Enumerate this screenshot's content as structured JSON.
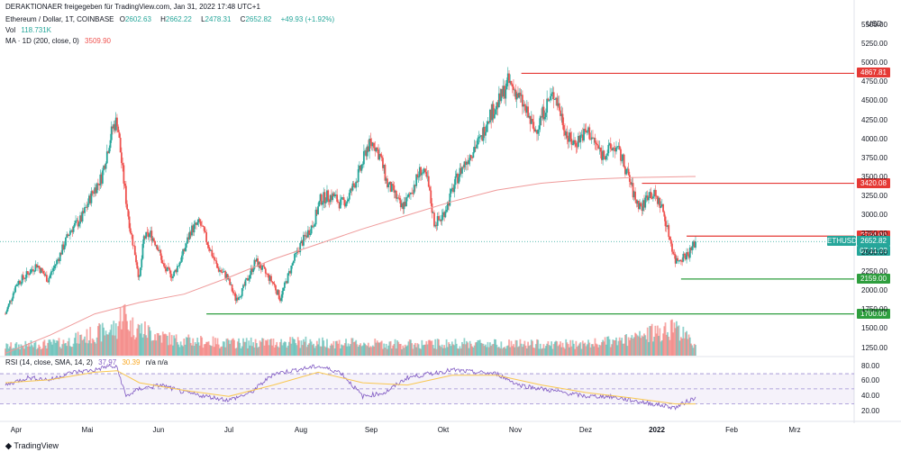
{
  "header": {
    "publisher": "DERAKTIONAER freigegeben für TradingView.com, Jan 31, 2022 17:48 UTC+1",
    "symbol": "Ethereum / Dollar, 1T, COINBASE",
    "ohlc_o_label": "O",
    "ohlc_o": "2602.63",
    "ohlc_h_label": "H",
    "ohlc_h": "2662.22",
    "ohlc_l_label": "L",
    "ohlc_l": "2478.31",
    "ohlc_c_label": "C",
    "ohlc_c": "2652.82",
    "change": "+49.93 (+1.92%)",
    "vol_label": "Vol",
    "vol_value": "118.731K",
    "ma_label": "MA · 1D (200, close, 0)",
    "ma_value": "3509.90",
    "rsi_label": "RSI (14, close, SMA, 14, 2)",
    "rsi_value": "37.97",
    "rsi_sma": "30.39",
    "rsi_na": "n/a n/a"
  },
  "currency": "USD",
  "branding": "TradingView",
  "price_badges": {
    "r1": "4867.81",
    "r2": "3420.08",
    "r3": "2724.00",
    "ticker": "ETHUSD",
    "last": "2652.82",
    "countdown": "07:11:33",
    "s1": "2159.00",
    "s2": "1700.00"
  },
  "colors": {
    "up": "#26a69a",
    "down": "#ef5350",
    "ma": "#ef9a9a",
    "rsi": "#7e57c2",
    "rsi_sma": "#f9c74f",
    "support": "#2e9e3e",
    "resistance": "#e53935"
  },
  "chart_data": {
    "type": "candlestick",
    "x_axis": [
      "Apr",
      "Mai",
      "Jun",
      "Jul",
      "Aug",
      "Sep",
      "Okt",
      "Nov",
      "Dez",
      "2022",
      "Feb",
      "Mrz"
    ],
    "y_ticks": [
      1250,
      1500,
      1750,
      2000,
      2250,
      2500,
      2750,
      3000,
      3250,
      3500,
      3750,
      4000,
      4250,
      4500,
      4750,
      5000,
      5250,
      5500
    ],
    "ylim": [
      1150,
      5620
    ],
    "price_path": [
      [
        0,
        1700
      ],
      [
        10,
        2100
      ],
      [
        18,
        2200
      ],
      [
        28,
        2350
      ],
      [
        38,
        2150
      ],
      [
        48,
        2450
      ],
      [
        58,
        2800
      ],
      [
        68,
        2950
      ],
      [
        78,
        3300
      ],
      [
        86,
        3500
      ],
      [
        92,
        3900
      ],
      [
        96,
        4150
      ],
      [
        100,
        4250
      ],
      [
        104,
        3700
      ],
      [
        108,
        3200
      ],
      [
        112,
        2800
      ],
      [
        116,
        2500
      ],
      [
        120,
        2150
      ],
      [
        124,
        2700
      ],
      [
        130,
        2750
      ],
      [
        136,
        2600
      ],
      [
        142,
        2300
      ],
      [
        150,
        2200
      ],
      [
        158,
        2450
      ],
      [
        166,
        2800
      ],
      [
        174,
        2900
      ],
      [
        182,
        2600
      ],
      [
        190,
        2300
      ],
      [
        198,
        2200
      ],
      [
        206,
        1900
      ],
      [
        212,
        2000
      ],
      [
        218,
        2200
      ],
      [
        224,
        2400
      ],
      [
        232,
        2250
      ],
      [
        240,
        2100
      ],
      [
        246,
        1900
      ],
      [
        252,
        2150
      ],
      [
        258,
        2400
      ],
      [
        264,
        2600
      ],
      [
        270,
        2750
      ],
      [
        276,
        2900
      ],
      [
        282,
        3200
      ],
      [
        288,
        3250
      ],
      [
        294,
        3250
      ],
      [
        300,
        3150
      ],
      [
        306,
        3200
      ],
      [
        312,
        3400
      ],
      [
        318,
        3600
      ],
      [
        324,
        3900
      ],
      [
        330,
        3950
      ],
      [
        336,
        3750
      ],
      [
        342,
        3400
      ],
      [
        348,
        3300
      ],
      [
        354,
        3100
      ],
      [
        360,
        3200
      ],
      [
        366,
        3400
      ],
      [
        372,
        3600
      ],
      [
        378,
        3450
      ],
      [
        384,
        2900
      ],
      [
        390,
        2950
      ],
      [
        396,
        3150
      ],
      [
        402,
        3400
      ],
      [
        408,
        3600
      ],
      [
        414,
        3750
      ],
      [
        420,
        3900
      ],
      [
        426,
        4000
      ],
      [
        432,
        4300
      ],
      [
        438,
        4400
      ],
      [
        444,
        4550
      ],
      [
        450,
        4750
      ],
      [
        456,
        4650
      ],
      [
        462,
        4500
      ],
      [
        468,
        4300
      ],
      [
        474,
        4100
      ],
      [
        480,
        4300
      ],
      [
        486,
        4500
      ],
      [
        492,
        4600
      ],
      [
        498,
        4300
      ],
      [
        504,
        4000
      ],
      [
        510,
        3950
      ],
      [
        516,
        4050
      ],
      [
        522,
        4100
      ],
      [
        528,
        3950
      ],
      [
        534,
        3800
      ],
      [
        540,
        3850
      ],
      [
        546,
        3900
      ],
      [
        552,
        3750
      ],
      [
        558,
        3500
      ],
      [
        564,
        3200
      ],
      [
        570,
        3100
      ],
      [
        576,
        3300
      ],
      [
        582,
        3250
      ],
      [
        588,
        3100
      ],
      [
        594,
        2750
      ],
      [
        600,
        2400
      ],
      [
        606,
        2450
      ],
      [
        612,
        2500
      ],
      [
        618,
        2650
      ]
    ],
    "volume_path": [
      [
        0,
        40
      ],
      [
        50,
        55
      ],
      [
        100,
        120
      ],
      [
        105,
        200
      ],
      [
        112,
        130
      ],
      [
        150,
        70
      ],
      [
        200,
        55
      ],
      [
        260,
        60
      ],
      [
        300,
        55
      ],
      [
        360,
        50
      ],
      [
        420,
        55
      ],
      [
        470,
        50
      ],
      [
        520,
        50
      ],
      [
        560,
        70
      ],
      [
        600,
        130
      ],
      [
        618,
        40
      ]
    ],
    "ma200_path": [
      [
        0,
        1180
      ],
      [
        40,
        1420
      ],
      [
        80,
        1700
      ],
      [
        120,
        1850
      ],
      [
        160,
        1960
      ],
      [
        200,
        2180
      ],
      [
        240,
        2420
      ],
      [
        280,
        2620
      ],
      [
        320,
        2820
      ],
      [
        360,
        3000
      ],
      [
        400,
        3180
      ],
      [
        440,
        3330
      ],
      [
        480,
        3420
      ],
      [
        520,
        3470
      ],
      [
        560,
        3495
      ],
      [
        600,
        3505
      ],
      [
        618,
        3510
      ]
    ],
    "rsi_path": [
      [
        0,
        55
      ],
      [
        20,
        65
      ],
      [
        40,
        62
      ],
      [
        60,
        72
      ],
      [
        80,
        75
      ],
      [
        92,
        80
      ],
      [
        100,
        78
      ],
      [
        108,
        40
      ],
      [
        120,
        50
      ],
      [
        140,
        55
      ],
      [
        160,
        45
      ],
      [
        180,
        40
      ],
      [
        200,
        35
      ],
      [
        220,
        45
      ],
      [
        240,
        70
      ],
      [
        260,
        75
      ],
      [
        280,
        80
      ],
      [
        300,
        72
      ],
      [
        320,
        40
      ],
      [
        340,
        45
      ],
      [
        360,
        65
      ],
      [
        380,
        70
      ],
      [
        400,
        75
      ],
      [
        420,
        72
      ],
      [
        440,
        70
      ],
      [
        460,
        55
      ],
      [
        480,
        50
      ],
      [
        500,
        45
      ],
      [
        520,
        40
      ],
      [
        540,
        40
      ],
      [
        560,
        35
      ],
      [
        580,
        30
      ],
      [
        600,
        25
      ],
      [
        610,
        33
      ],
      [
        618,
        38
      ]
    ],
    "rsi_sma_path": [
      [
        0,
        58
      ],
      [
        40,
        62
      ],
      [
        80,
        72
      ],
      [
        100,
        74
      ],
      [
        120,
        58
      ],
      [
        160,
        48
      ],
      [
        200,
        40
      ],
      [
        240,
        55
      ],
      [
        280,
        72
      ],
      [
        320,
        58
      ],
      [
        360,
        55
      ],
      [
        400,
        68
      ],
      [
        440,
        68
      ],
      [
        480,
        55
      ],
      [
        520,
        45
      ],
      [
        560,
        38
      ],
      [
        600,
        30
      ],
      [
        618,
        30
      ]
    ],
    "rsi_ticks": [
      20,
      40,
      60,
      80
    ],
    "rsi_bands": [
      30,
      50,
      70
    ],
    "rsi_ylim": [
      14,
      88
    ],
    "horizontal_levels": [
      {
        "value": 4867.81,
        "start": 462,
        "kind": "resistance"
      },
      {
        "value": 3420.08,
        "start": 570,
        "kind": "resistance"
      },
      {
        "value": 2724.0,
        "start": 610,
        "kind": "resistance"
      },
      {
        "value": 2159.0,
        "start": 605,
        "kind": "support"
      },
      {
        "value": 1700.0,
        "start": 180,
        "kind": "support"
      }
    ],
    "last_price": 2652.82,
    "bars_visible": 760
  }
}
